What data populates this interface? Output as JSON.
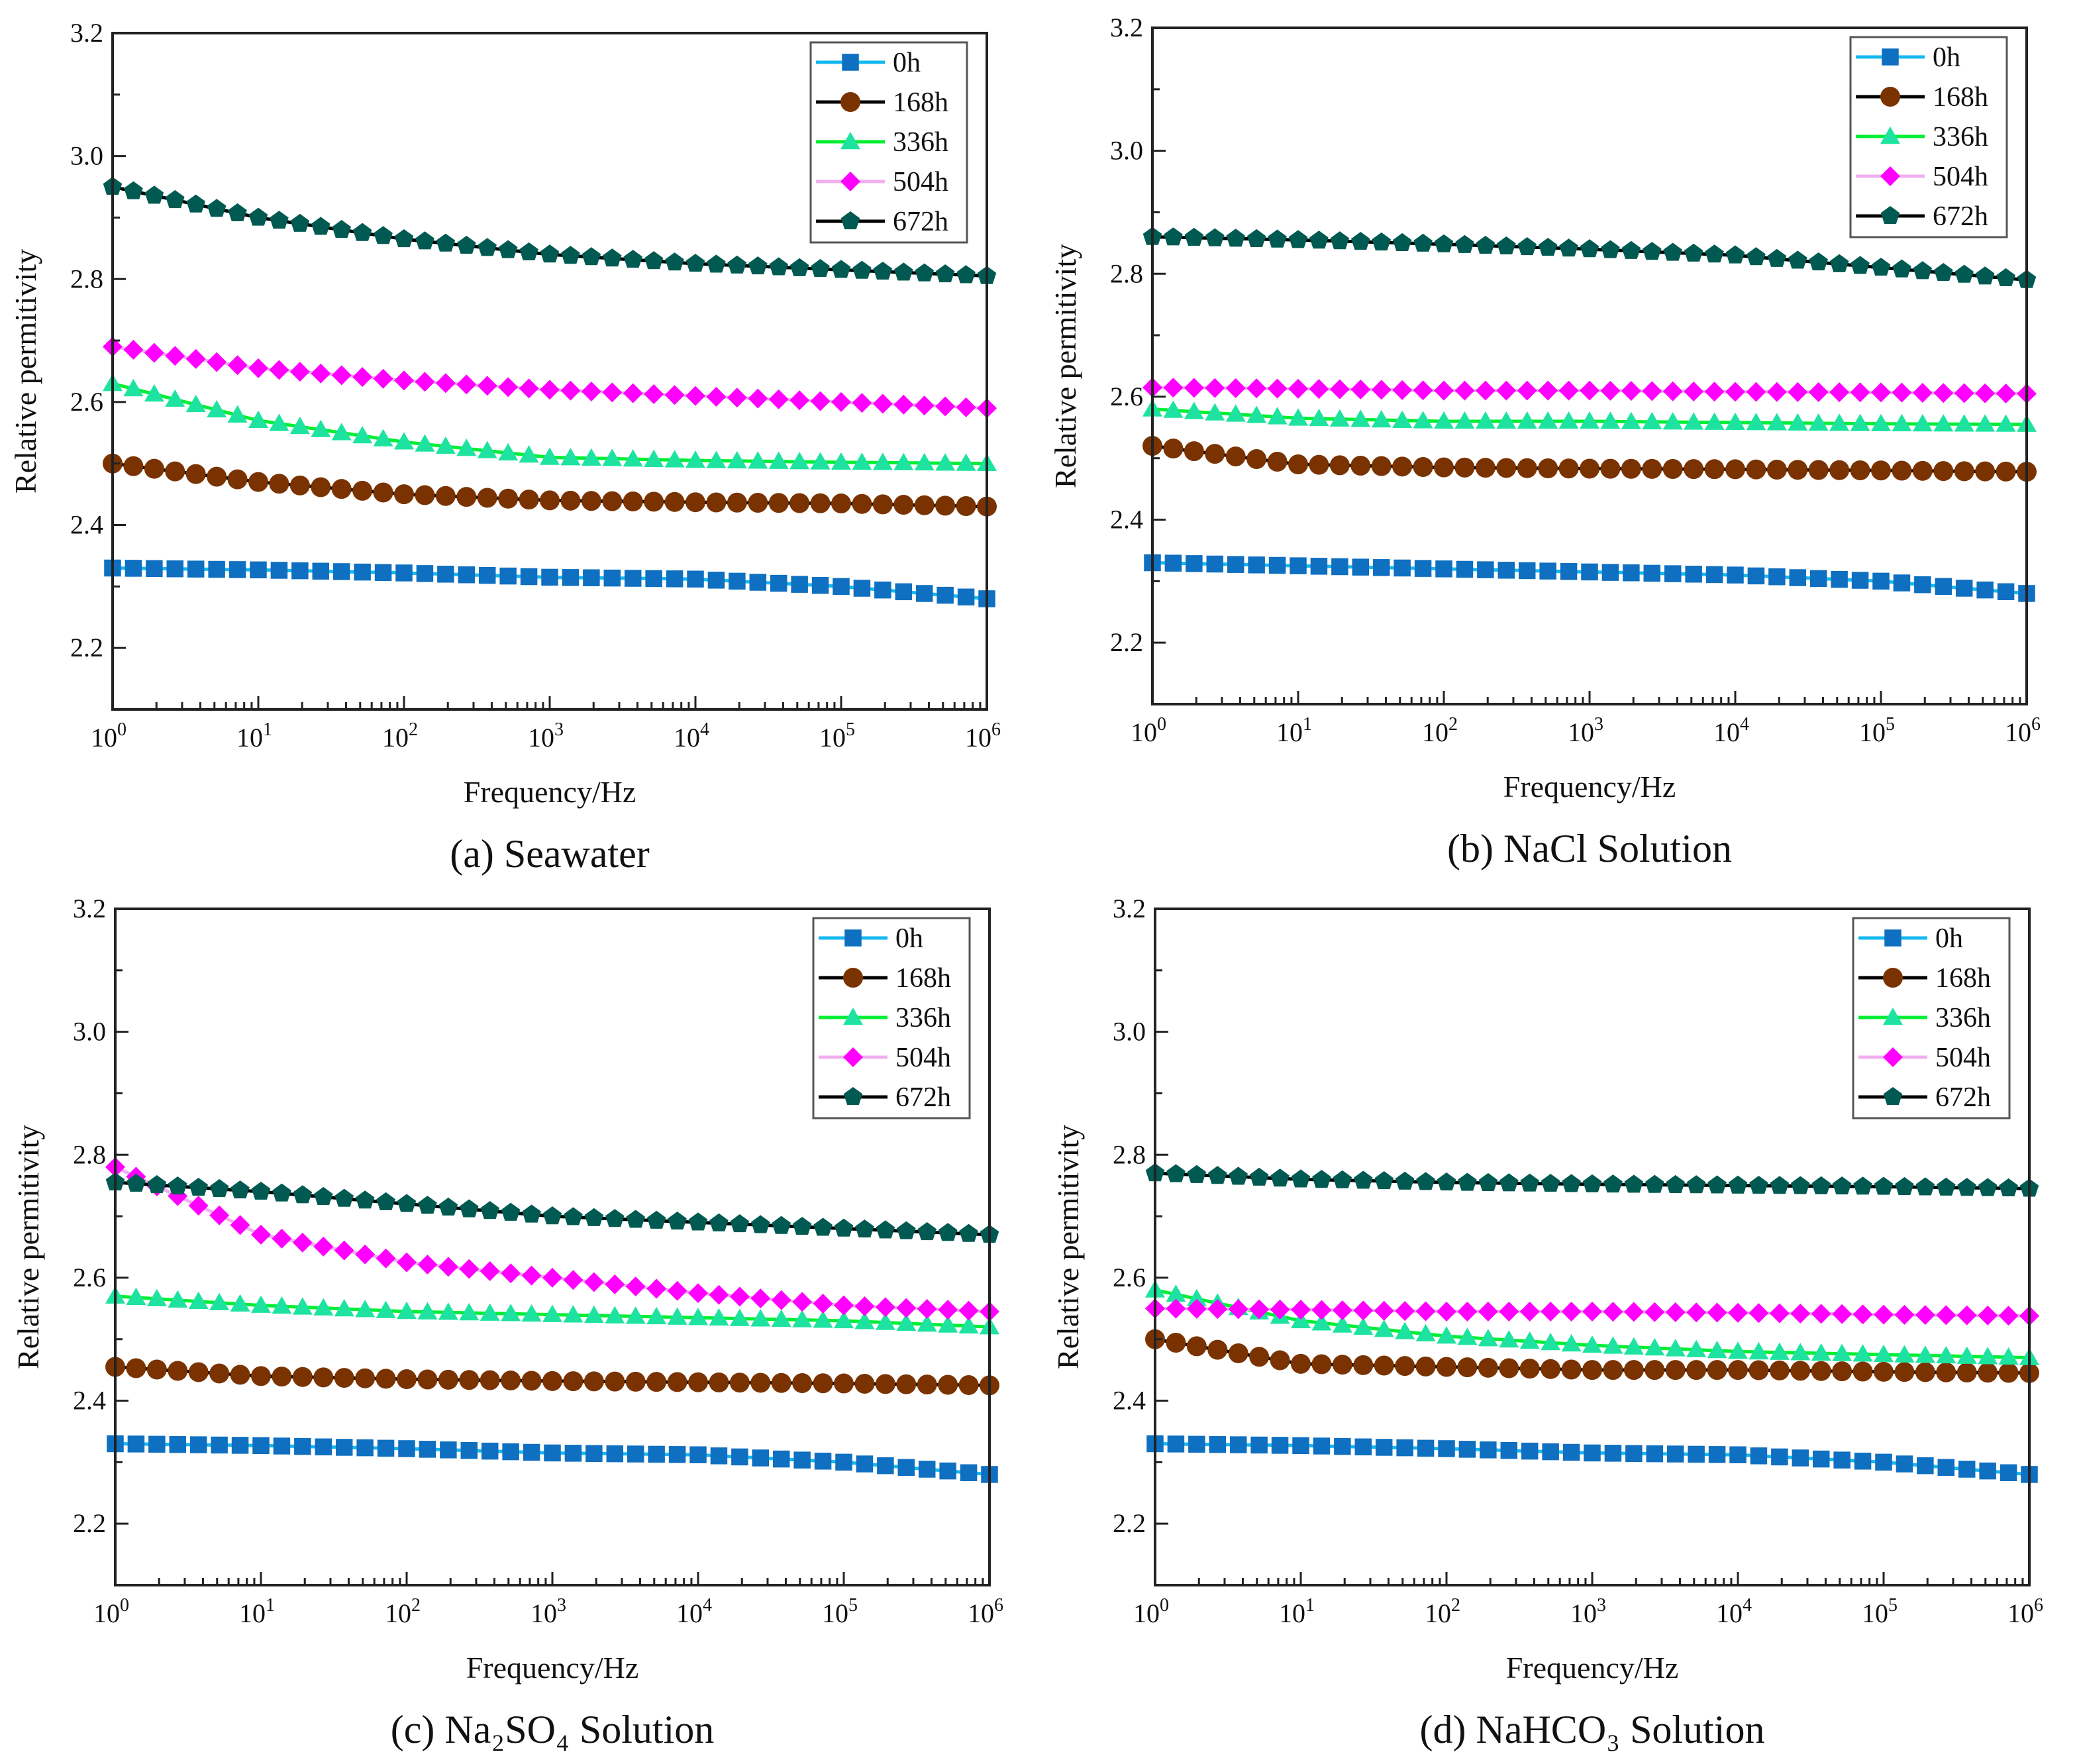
{
  "chart_data": [
    {
      "type": "line",
      "title": "(a) Seawater",
      "xlabel": "Frequency/Hz",
      "ylabel": "Relative permitivity",
      "xscale": "log",
      "xlim": [
        1,
        1000000
      ],
      "ylim": [
        2.1,
        3.2
      ],
      "x_ticks_exponents": [
        0,
        1,
        2,
        3,
        4,
        5,
        6
      ],
      "y_tick_labels": [
        "2.2",
        "2.4",
        "2.6",
        "2.8",
        "3.0",
        "3.2"
      ],
      "x": [
        1,
        10,
        100,
        1000,
        10000,
        100000,
        1000000
      ],
      "legend_position": "top-right",
      "series": [
        {
          "name": "0h",
          "values": [
            2.33,
            2.327,
            2.322,
            2.315,
            2.312,
            2.3,
            2.28
          ]
        },
        {
          "name": "168h",
          "values": [
            2.5,
            2.47,
            2.45,
            2.44,
            2.437,
            2.435,
            2.43
          ]
        },
        {
          "name": "336h",
          "values": [
            2.63,
            2.57,
            2.535,
            2.51,
            2.505,
            2.502,
            2.5
          ]
        },
        {
          "name": "504h",
          "values": [
            2.69,
            2.655,
            2.635,
            2.62,
            2.61,
            2.6,
            2.59
          ]
        },
        {
          "name": "672h",
          "values": [
            2.95,
            2.9,
            2.865,
            2.84,
            2.825,
            2.815,
            2.805
          ]
        }
      ]
    },
    {
      "type": "line",
      "title": "(b) NaCl Solution",
      "xlabel": "Frequency/Hz",
      "ylabel": "Relative permitivity",
      "xscale": "log",
      "xlim": [
        1,
        1000000
      ],
      "ylim": [
        2.1,
        3.2
      ],
      "x_ticks_exponents": [
        0,
        1,
        2,
        3,
        4,
        5,
        6
      ],
      "y_tick_labels": [
        "2.2",
        "2.4",
        "2.6",
        "2.8",
        "3.0",
        "3.2"
      ],
      "x": [
        1,
        10,
        100,
        1000,
        10000,
        100000,
        1000000
      ],
      "legend_position": "top-right",
      "series": [
        {
          "name": "0h",
          "values": [
            2.33,
            2.325,
            2.32,
            2.315,
            2.31,
            2.3,
            2.28
          ]
        },
        {
          "name": "168h",
          "values": [
            2.52,
            2.49,
            2.485,
            2.483,
            2.482,
            2.48,
            2.478
          ]
        },
        {
          "name": "336h",
          "values": [
            2.58,
            2.565,
            2.56,
            2.56,
            2.558,
            2.556,
            2.555
          ]
        },
        {
          "name": "504h",
          "values": [
            2.615,
            2.613,
            2.61,
            2.61,
            2.608,
            2.607,
            2.605
          ]
        },
        {
          "name": "672h",
          "values": [
            2.86,
            2.855,
            2.848,
            2.84,
            2.83,
            2.81,
            2.79
          ]
        }
      ]
    },
    {
      "type": "line",
      "title": "(c) Na₂SO₄ Solution",
      "xlabel": "Frequency/Hz",
      "ylabel": "Relative permitivity",
      "xscale": "log",
      "xlim": [
        1,
        1000000
      ],
      "ylim": [
        2.1,
        3.2
      ],
      "x_ticks_exponents": [
        0,
        1,
        2,
        3,
        4,
        5,
        6
      ],
      "y_tick_labels": [
        "2.2",
        "2.4",
        "2.6",
        "2.8",
        "3.0",
        "3.2"
      ],
      "x": [
        1,
        10,
        100,
        1000,
        10000,
        100000,
        1000000
      ],
      "legend_position": "top-right",
      "series": [
        {
          "name": "0h",
          "values": [
            2.33,
            2.327,
            2.322,
            2.315,
            2.312,
            2.3,
            2.28
          ]
        },
        {
          "name": "168h",
          "values": [
            2.455,
            2.44,
            2.435,
            2.432,
            2.43,
            2.428,
            2.425
          ]
        },
        {
          "name": "336h",
          "values": [
            2.57,
            2.555,
            2.545,
            2.54,
            2.535,
            2.53,
            2.52
          ]
        },
        {
          "name": "504h",
          "values": [
            2.78,
            2.67,
            2.625,
            2.6,
            2.575,
            2.555,
            2.545
          ]
        },
        {
          "name": "672h",
          "values": [
            2.755,
            2.74,
            2.72,
            2.7,
            2.69,
            2.68,
            2.67
          ]
        }
      ]
    },
    {
      "type": "line",
      "title": "(d) NaHCO₃ Solution",
      "xlabel": "Frequency/Hz",
      "ylabel": "Relative permitivity",
      "xscale": "log",
      "xlim": [
        1,
        1000000
      ],
      "ylim": [
        2.1,
        3.2
      ],
      "x_ticks_exponents": [
        0,
        1,
        2,
        3,
        4,
        5,
        6
      ],
      "y_tick_labels": [
        "2.2",
        "2.4",
        "2.6",
        "2.8",
        "3.0",
        "3.2"
      ],
      "x": [
        1,
        10,
        100,
        1000,
        10000,
        100000,
        1000000
      ],
      "legend_position": "top-right",
      "series": [
        {
          "name": "0h",
          "values": [
            2.33,
            2.327,
            2.322,
            2.315,
            2.312,
            2.3,
            2.28
          ]
        },
        {
          "name": "168h",
          "values": [
            2.5,
            2.46,
            2.455,
            2.45,
            2.45,
            2.447,
            2.445
          ]
        },
        {
          "name": "336h",
          "values": [
            2.58,
            2.53,
            2.505,
            2.49,
            2.48,
            2.475,
            2.47
          ]
        },
        {
          "name": "504h",
          "values": [
            2.55,
            2.548,
            2.545,
            2.545,
            2.543,
            2.54,
            2.538
          ]
        },
        {
          "name": "672h",
          "values": [
            2.77,
            2.76,
            2.755,
            2.752,
            2.75,
            2.748,
            2.745
          ]
        }
      ]
    }
  ],
  "series_styles": [
    {
      "marker": "square",
      "marker_color": "#0f6fc0",
      "line_color": "#14b8f0"
    },
    {
      "marker": "circle",
      "marker_color": "#7a3300",
      "line_color": "#000000"
    },
    {
      "marker": "triangle",
      "marker_color": "#1ee3a0",
      "line_color": "#00ee33"
    },
    {
      "marker": "diamond",
      "marker_color": "#ff00ff",
      "line_color": "#f0b0f0"
    },
    {
      "marker": "pentagon",
      "marker_color": "#005a52",
      "line_color": "#000000"
    }
  ]
}
